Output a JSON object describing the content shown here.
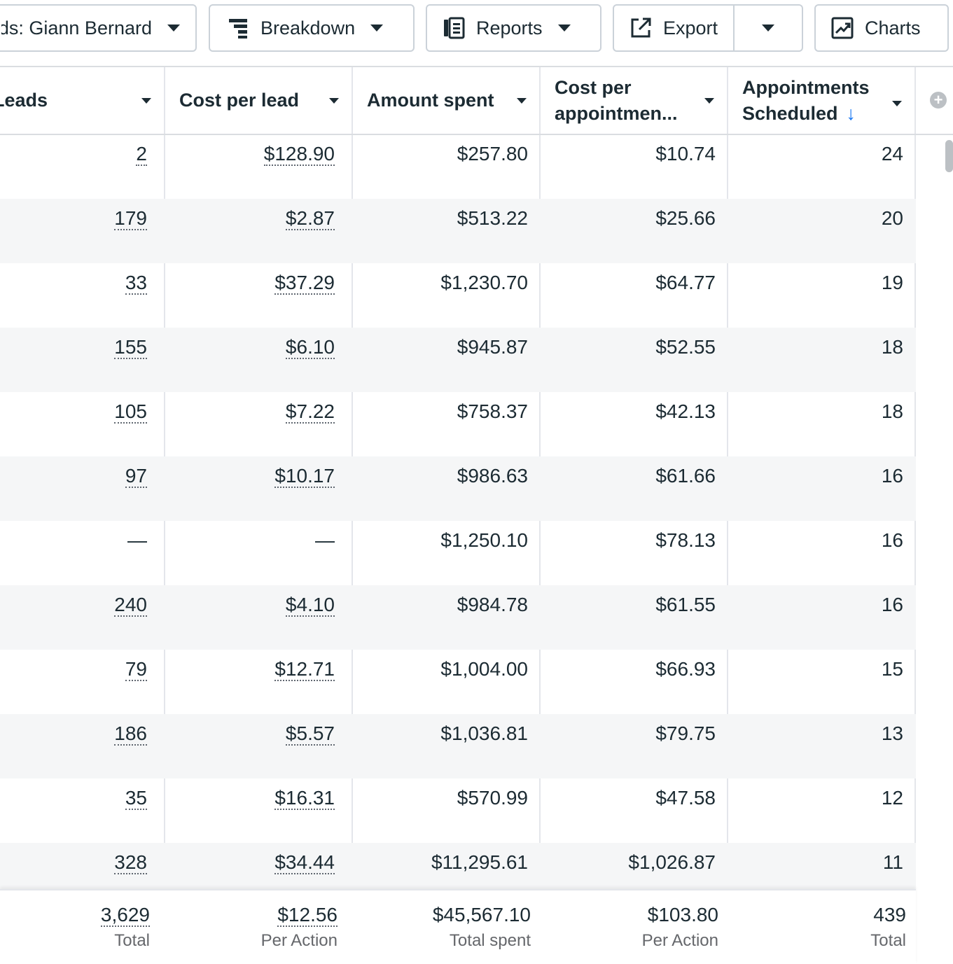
{
  "toolbar": {
    "filter_label": "Ads: Giann Bernard",
    "breakdown_label": "Breakdown",
    "reports_label": "Reports",
    "export_label": "Export",
    "charts_label": "Charts"
  },
  "columns": {
    "leads": "Leads",
    "cost_per_lead": "Cost per lead",
    "amount_spent": "Amount spent",
    "cost_per_appointment_line1": "Cost per",
    "cost_per_appointment_line2": "appointmen...",
    "appointments_line1": "Appointments",
    "appointments_line2": "Scheduled",
    "sort_arrow": "↓"
  },
  "rows": [
    {
      "leads": "2",
      "cost_per_lead": "$128.90",
      "amount_spent": "$257.80",
      "cost_per_appointment": "$10.74",
      "appointments": "24"
    },
    {
      "leads": "179",
      "cost_per_lead": "$2.87",
      "amount_spent": "$513.22",
      "cost_per_appointment": "$25.66",
      "appointments": "20"
    },
    {
      "leads": "33",
      "cost_per_lead": "$37.29",
      "amount_spent": "$1,230.70",
      "cost_per_appointment": "$64.77",
      "appointments": "19"
    },
    {
      "leads": "155",
      "cost_per_lead": "$6.10",
      "amount_spent": "$945.87",
      "cost_per_appointment": "$52.55",
      "appointments": "18"
    },
    {
      "leads": "105",
      "cost_per_lead": "$7.22",
      "amount_spent": "$758.37",
      "cost_per_appointment": "$42.13",
      "appointments": "18"
    },
    {
      "leads": "97",
      "cost_per_lead": "$10.17",
      "amount_spent": "$986.63",
      "cost_per_appointment": "$61.66",
      "appointments": "16"
    },
    {
      "leads": "—",
      "cost_per_lead": "—",
      "amount_spent": "$1,250.10",
      "cost_per_appointment": "$78.13",
      "appointments": "16"
    },
    {
      "leads": "240",
      "cost_per_lead": "$4.10",
      "amount_spent": "$984.78",
      "cost_per_appointment": "$61.55",
      "appointments": "16"
    },
    {
      "leads": "79",
      "cost_per_lead": "$12.71",
      "amount_spent": "$1,004.00",
      "cost_per_appointment": "$66.93",
      "appointments": "15"
    },
    {
      "leads": "186",
      "cost_per_lead": "$5.57",
      "amount_spent": "$1,036.81",
      "cost_per_appointment": "$79.75",
      "appointments": "13"
    },
    {
      "leads": "35",
      "cost_per_lead": "$16.31",
      "amount_spent": "$570.99",
      "cost_per_appointment": "$47.58",
      "appointments": "12"
    },
    {
      "leads": "328",
      "cost_per_lead": "$34.44",
      "amount_spent": "$11,295.61",
      "cost_per_appointment": "$1,026.87",
      "appointments": "11"
    }
  ],
  "totals": {
    "leads": {
      "value": "3,629",
      "label": "Total"
    },
    "cost_per_lead": {
      "value": "$12.56",
      "label": "Per Action"
    },
    "amount_spent": {
      "value": "$45,567.10",
      "label": "Total spent"
    },
    "cost_per_appointment": {
      "value": "$103.80",
      "label": "Per Action"
    },
    "appointments": {
      "value": "439",
      "label": "Total"
    }
  }
}
